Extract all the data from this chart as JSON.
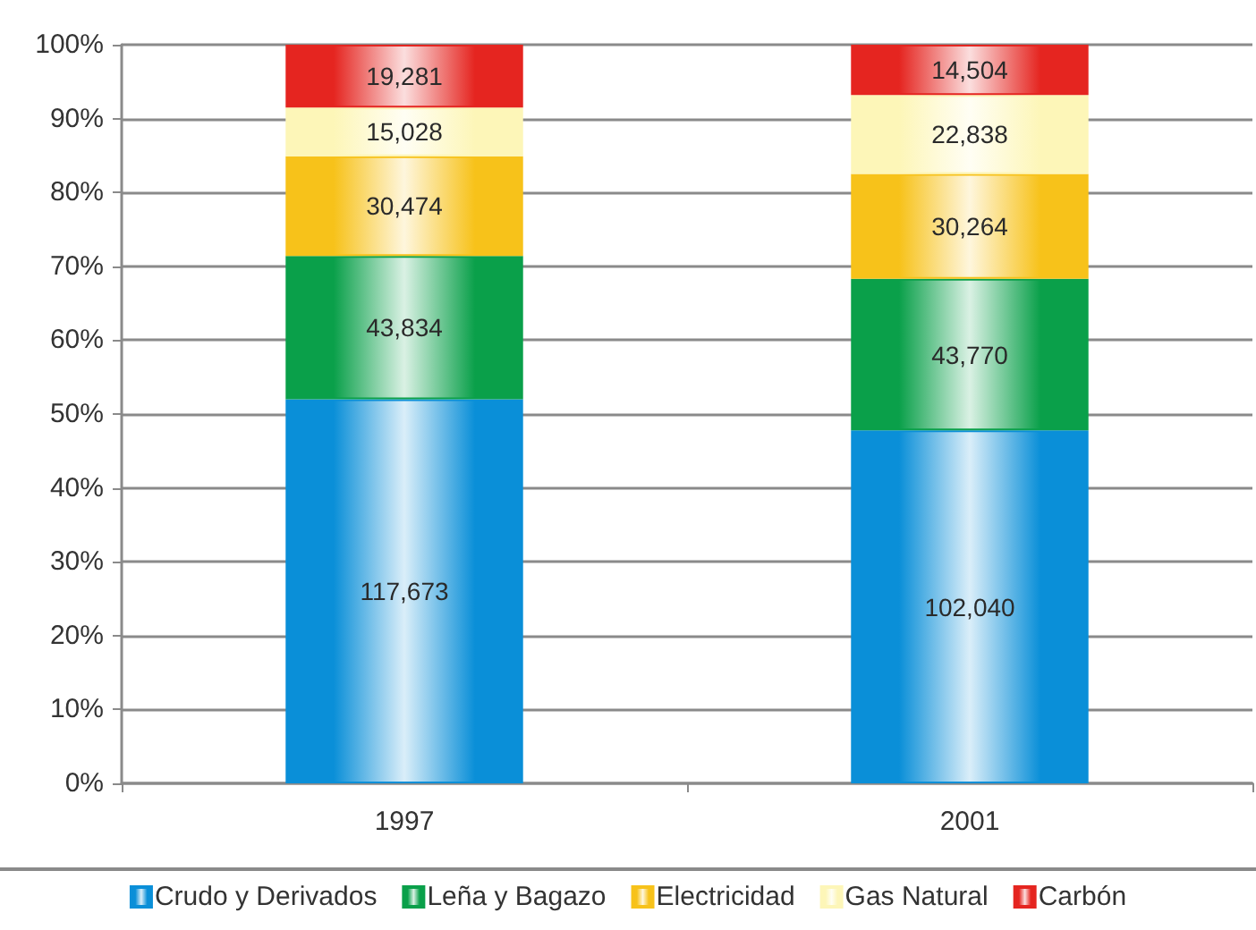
{
  "chart_data": {
    "type": "bar",
    "stacked": true,
    "categories": [
      "1997",
      "2001"
    ],
    "series": [
      {
        "name": "Crudo y Derivados",
        "color": "#0a8fd8",
        "values": [
          52.0,
          47.8
        ]
      },
      {
        "name": "Leña y Bagazo",
        "color": "#0aa04a",
        "values": [
          19.4,
          20.5
        ]
      },
      {
        "name": "Electricidad",
        "color": "#f7c21a",
        "values": [
          13.5,
          14.2
        ]
      },
      {
        "name": "Gas Natural",
        "color": "#fdf6b8",
        "values": [
          6.6,
          10.7
        ]
      },
      {
        "name": "Carbón",
        "color": "#e52520",
        "values": [
          8.5,
          6.8
        ]
      }
    ],
    "annotations": [
      "117,673",
      "43,834",
      "30,474",
      "15,028",
      "19,281",
      "102,040",
      "43,770",
      "30,264",
      "22,838",
      "14,504"
    ],
    "ylim": [
      0,
      100
    ],
    "yticks": [
      {
        "value": 0,
        "label": "0%"
      },
      {
        "value": 10,
        "label": "10%"
      },
      {
        "value": 20,
        "label": "20%"
      },
      {
        "value": 30,
        "label": "30%"
      },
      {
        "value": 40,
        "label": "40%"
      },
      {
        "value": 50,
        "label": "50%"
      },
      {
        "value": 60,
        "label": "60%"
      },
      {
        "value": 70,
        "label": "70%"
      },
      {
        "value": 80,
        "label": "80%"
      },
      {
        "value": 90,
        "label": "90%"
      },
      {
        "value": 100,
        "label": "100%"
      }
    ],
    "grid": "y",
    "legend": "bottom"
  }
}
